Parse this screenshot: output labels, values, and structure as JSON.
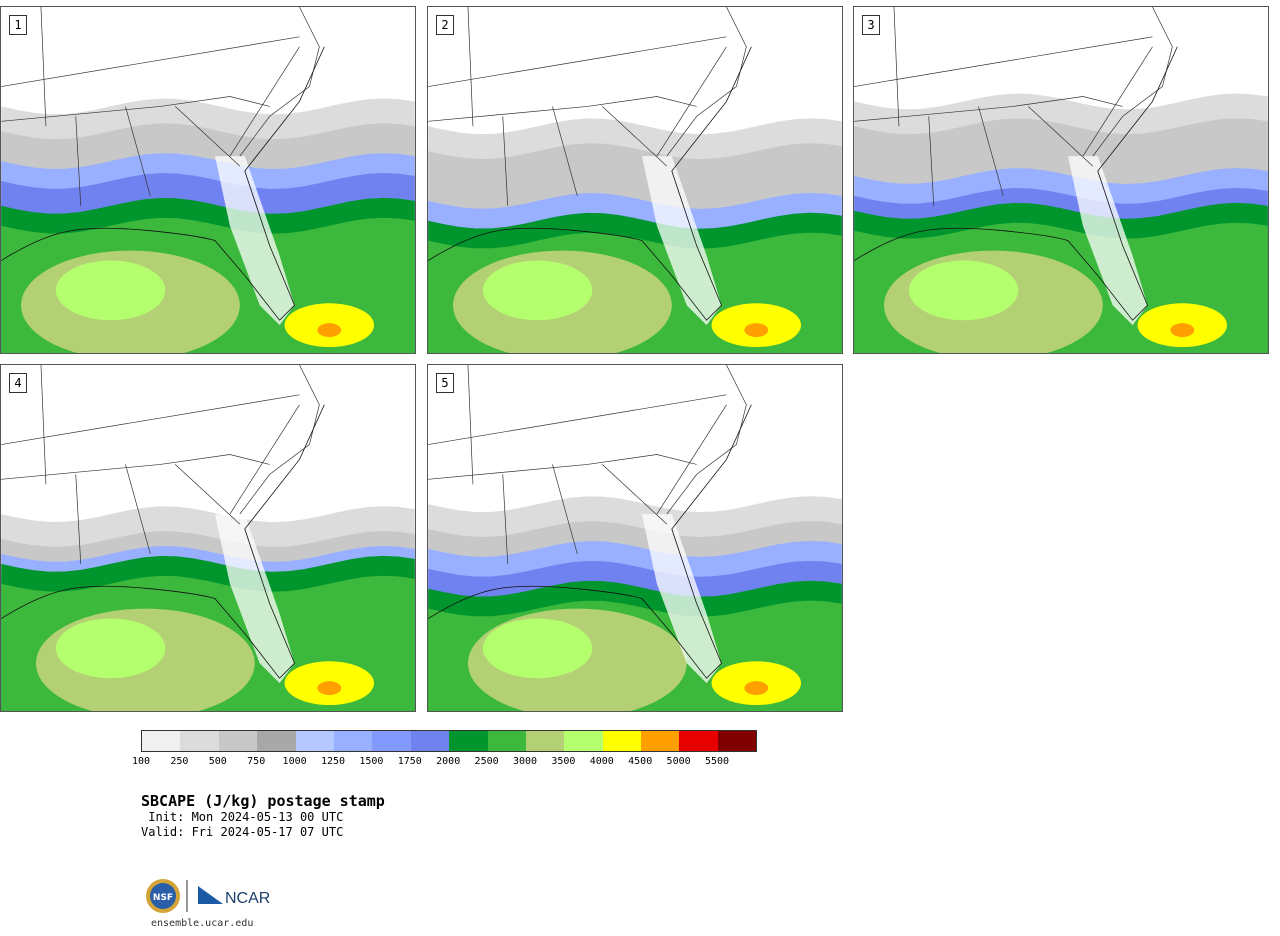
{
  "panels": [
    {
      "label": "1"
    },
    {
      "label": "2"
    },
    {
      "label": "3"
    },
    {
      "label": "4"
    },
    {
      "label": "5"
    }
  ],
  "colorbar": {
    "colors": [
      "#f0f0f0",
      "#dcdcdc",
      "#c8c8c8",
      "#a8a8a8",
      "#b5c8ff",
      "#98b0ff",
      "#8299ff",
      "#6f82f0",
      "#00962d",
      "#3cb83c",
      "#b4d074",
      "#b4ff6e",
      "#ffff00",
      "#ffa000",
      "#e60000",
      "#800000"
    ],
    "ticks": [
      "100",
      "250",
      "500",
      "750",
      "1000",
      "1250",
      "1500",
      "1750",
      "2000",
      "2500",
      "3000",
      "3500",
      "4000",
      "4500",
      "5000",
      "5500"
    ]
  },
  "title": "SBCAPE (J/kg) postage stamp",
  "init": " Init: Mon 2024-05-13 00 UTC",
  "valid": "Valid: Fri 2024-05-17 07 UTC",
  "logos": {
    "left": "NSF",
    "right": "NCAR"
  },
  "url": "ensemble.ucar.edu"
}
